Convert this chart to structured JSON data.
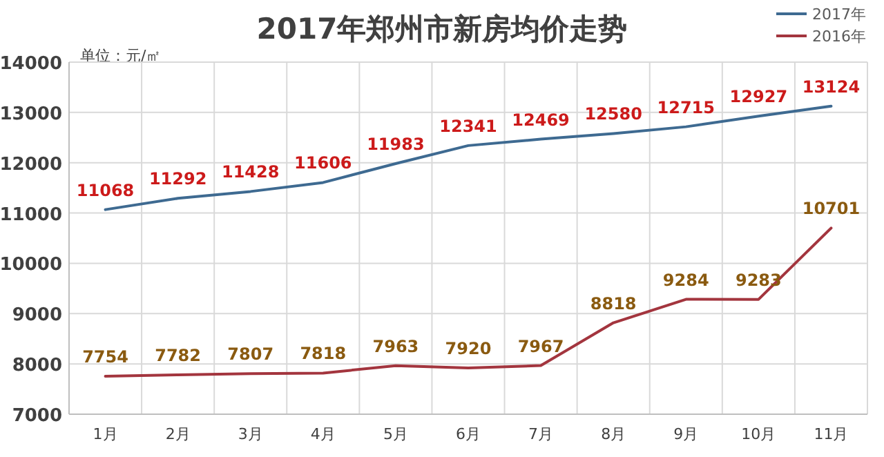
{
  "chart_data": {
    "type": "line",
    "title": "2017年郑州市新房均价走势",
    "annotations": [
      "单位：元/㎡"
    ],
    "categories": [
      "1月",
      "2月",
      "3月",
      "4月",
      "5月",
      "6月",
      "7月",
      "8月",
      "9月",
      "10月",
      "11月"
    ],
    "series": [
      {
        "name": "2017年",
        "color": "#3e6a91",
        "values": [
          11068,
          11292,
          11428,
          11606,
          11983,
          12341,
          12469,
          12580,
          12715,
          12927,
          13124
        ]
      },
      {
        "name": "2016年",
        "color": "#a3353e",
        "values": [
          7754,
          7782,
          7807,
          7818,
          7963,
          7920,
          7967,
          8818,
          9284,
          9283,
          10701
        ]
      }
    ],
    "ylim": [
      7000,
      14000
    ],
    "yticks": [
      7000,
      8000,
      9000,
      10000,
      11000,
      12000,
      13000,
      14000
    ],
    "grid": true,
    "legend": "top right",
    "data_labels": true,
    "marker": "none",
    "line_style": "solid"
  }
}
